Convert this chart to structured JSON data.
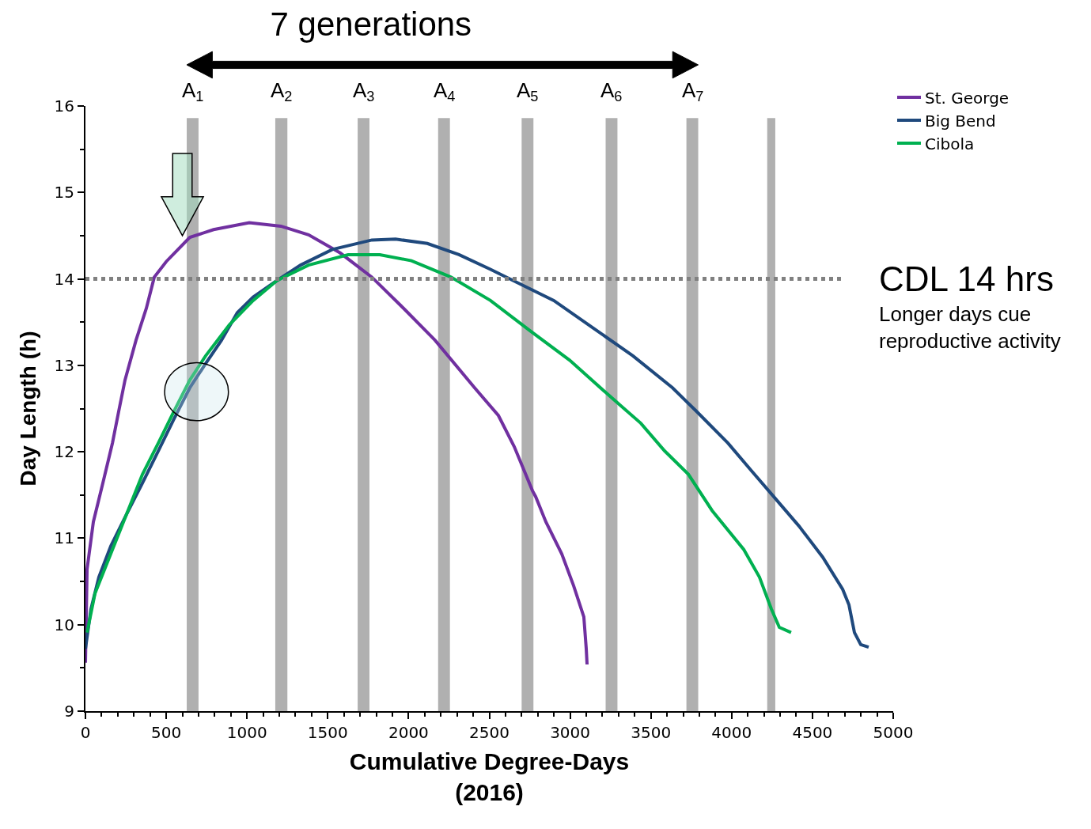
{
  "chart_data": {
    "type": "line",
    "title": "7 generations",
    "xlabel": "Cumulative Degree-Days\n(2016)",
    "ylabel": "Day Length (h)",
    "xlim": [
      0,
      5000
    ],
    "xticks": [
      0,
      500,
      1000,
      1500,
      2000,
      2500,
      3000,
      3500,
      4000,
      4500,
      5000
    ],
    "ylim": [
      9,
      16
    ],
    "yticks": [
      9,
      10,
      11,
      12,
      13,
      14,
      15,
      16
    ],
    "grid": false,
    "legend": "top right",
    "marker": "none",
    "line_style": "solid",
    "series": [
      {
        "name": "St. George",
        "color": "#7030a0",
        "x": [
          0,
          10,
          49,
          108,
          167,
          206,
          245,
          313,
          377,
          426,
          500,
          573,
          646,
          793,
          1014,
          1210,
          1381,
          1577,
          1773,
          1969,
          2164,
          2409,
          2556,
          2654,
          2767,
          2787,
          2850,
          2948,
          3022,
          3085,
          3100,
          3105
        ],
        "values": [
          9.56,
          10.64,
          11.19,
          11.64,
          12.1,
          12.47,
          12.83,
          13.29,
          13.66,
          14.02,
          14.2,
          14.34,
          14.48,
          14.57,
          14.65,
          14.61,
          14.51,
          14.3,
          14.02,
          13.66,
          13.29,
          12.74,
          12.42,
          12.06,
          11.55,
          11.48,
          11.19,
          10.82,
          10.45,
          10.09,
          9.72,
          9.54
        ]
      },
      {
        "name": "Big Bend",
        "color": "#1f497d",
        "x": [
          0,
          34,
          83,
          157,
          255,
          353,
          451,
          548,
          646,
          744,
          842,
          940,
          1038,
          1185,
          1332,
          1528,
          1773,
          1920,
          2116,
          2312,
          2507,
          2703,
          2899,
          3144,
          3389,
          3634,
          3781,
          3977,
          4123,
          4270,
          4417,
          4564,
          4687,
          4726,
          4760,
          4799,
          4848
        ],
        "values": [
          9.72,
          10.18,
          10.55,
          10.91,
          11.28,
          11.64,
          12.01,
          12.38,
          12.74,
          13.02,
          13.29,
          13.61,
          13.79,
          13.98,
          14.16,
          14.34,
          14.45,
          14.46,
          14.41,
          14.28,
          14.11,
          13.93,
          13.75,
          13.43,
          13.11,
          12.74,
          12.47,
          12.1,
          11.78,
          11.46,
          11.14,
          10.78,
          10.41,
          10.23,
          9.91,
          9.77,
          9.74
        ]
      },
      {
        "name": "Cibola",
        "color": "#00b050",
        "x": [
          10,
          59,
          157,
          255,
          353,
          451,
          548,
          646,
          744,
          891,
          1038,
          1185,
          1381,
          1626,
          1822,
          2018,
          2263,
          2507,
          2752,
          2997,
          3242,
          3438,
          3585,
          3732,
          3879,
          4075,
          4172,
          4246,
          4295,
          4368
        ],
        "values": [
          9.91,
          10.36,
          10.82,
          11.28,
          11.74,
          12.1,
          12.47,
          12.83,
          13.11,
          13.47,
          13.75,
          13.98,
          14.16,
          14.28,
          14.28,
          14.21,
          14.02,
          13.75,
          13.4,
          13.06,
          12.65,
          12.33,
          12.01,
          11.74,
          11.32,
          10.87,
          10.55,
          10.18,
          9.97,
          9.91
        ]
      }
    ],
    "ref_lines": [
      {
        "axis": "y",
        "value": 14,
        "label": "CDL 14 hrs",
        "color": "#808080",
        "line_style": "dotted"
      }
    ],
    "bands": [
      {
        "axis": "x",
        "from": 627,
        "to": 700,
        "label": "A$_{1}$",
        "color": "#b0b0b0"
      },
      {
        "axis": "x",
        "from": 1175,
        "to": 1250,
        "label": "A$_{2}$",
        "color": "#b0b0b0"
      },
      {
        "axis": "x",
        "from": 1685,
        "to": 1758,
        "label": "A$_{3}$",
        "color": "#b0b0b0"
      },
      {
        "axis": "x",
        "from": 2183,
        "to": 2256,
        "label": "A$_{4}$",
        "color": "#b0b0b0"
      },
      {
        "axis": "x",
        "from": 2700,
        "to": 2773,
        "label": "A$_{5}$",
        "color": "#b0b0b0"
      },
      {
        "axis": "x",
        "from": 3220,
        "to": 3293,
        "label": "A$_{6}$",
        "color": "#b0b0b0"
      },
      {
        "axis": "x",
        "from": 3720,
        "to": 3793,
        "label": "A$_{7}$",
        "color": "#b0b0b0"
      },
      {
        "axis": "x",
        "from": 4220,
        "to": 4270,
        "label": null,
        "color": "#b0b0b0"
      }
    ],
    "annotations": [
      "Longer days cue\nreproductive activity"
    ]
  }
}
